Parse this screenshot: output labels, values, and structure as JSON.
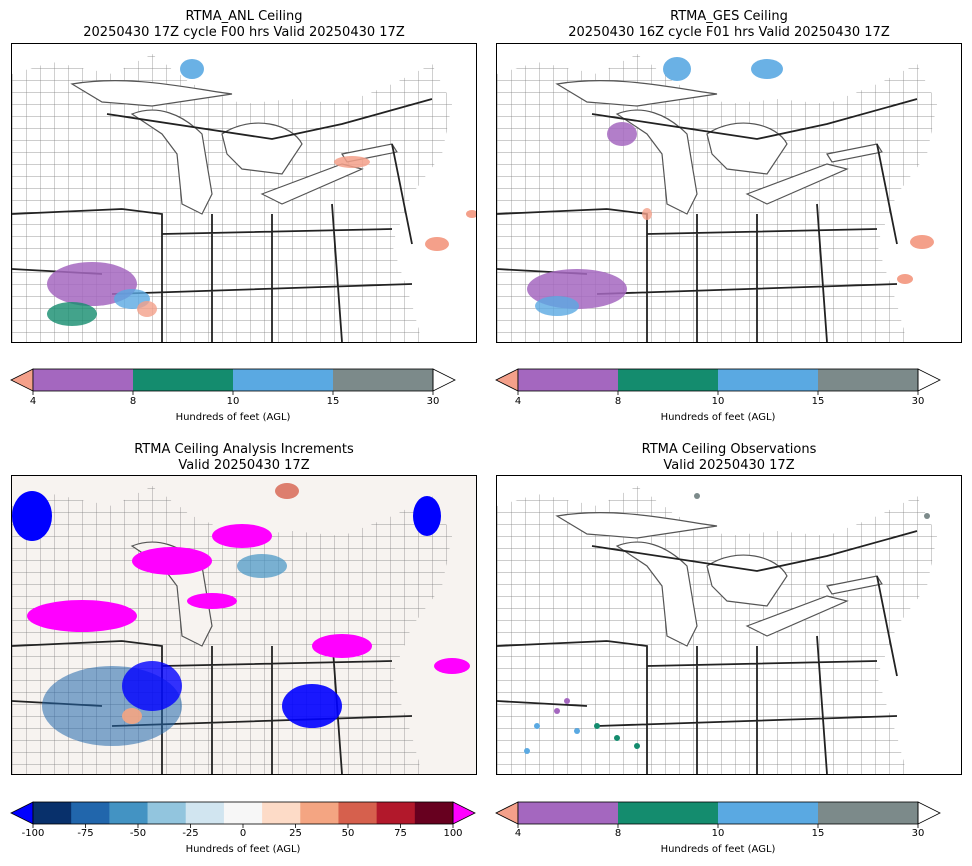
{
  "panels": [
    {
      "title_line1": "RTMA_ANL Ceiling",
      "title_line2": "20250430 17Z cycle F00 hrs Valid 20250430 17Z",
      "colorbar": {
        "label": "Hundreds of feet (AGL)",
        "ticks": [
          "4",
          "8",
          "10",
          "15",
          "30"
        ],
        "colors": [
          "#f4a08a",
          "#a467bf",
          "#148c6e",
          "#5aa9e2",
          "#7c8a8a",
          "#ffffff"
        ]
      }
    },
    {
      "title_line1": "RTMA_GES Ceiling",
      "title_line2": "20250430 16Z cycle F01 hrs Valid 20250430 17Z",
      "colorbar": {
        "label": "Hundreds of feet (AGL)",
        "ticks": [
          "4",
          "8",
          "10",
          "15",
          "30"
        ],
        "colors": [
          "#f4a08a",
          "#a467bf",
          "#148c6e",
          "#5aa9e2",
          "#7c8a8a",
          "#ffffff"
        ]
      }
    },
    {
      "title_line1": "RTMA Ceiling Analysis Increments",
      "title_line2": "Valid 20250430 17Z",
      "colorbar": {
        "label": "Hundreds of feet (AGL)",
        "ticks": [
          "-100",
          "-75",
          "-50",
          "-25",
          "0",
          "25",
          "50",
          "75",
          "100"
        ],
        "min_color": "#0000ff",
        "max_color": "#ff00ff",
        "diverging_colors": [
          "#08306b",
          "#2166ac",
          "#4393c3",
          "#92c5de",
          "#d1e5f0",
          "#f7f7f7",
          "#fddbc7",
          "#f4a582",
          "#d6604d",
          "#b2182b",
          "#67001f"
        ]
      }
    },
    {
      "title_line1": "RTMA Ceiling Observations",
      "title_line2": "Valid 20250430 17Z",
      "colorbar": {
        "label": "Hundreds of feet (AGL)",
        "ticks": [
          "4",
          "8",
          "10",
          "15",
          "30"
        ],
        "colors": [
          "#f4a08a",
          "#a467bf",
          "#148c6e",
          "#5aa9e2",
          "#7c8a8a",
          "#ffffff"
        ]
      }
    }
  ]
}
